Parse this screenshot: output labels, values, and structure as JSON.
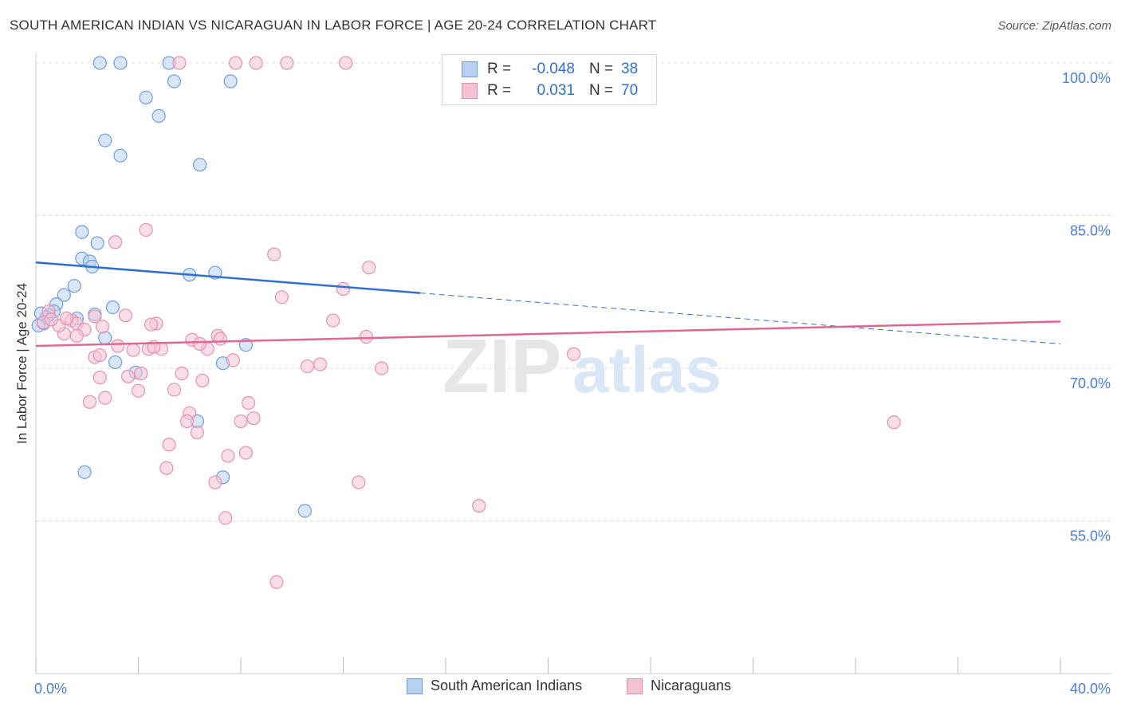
{
  "header": {
    "title": "SOUTH AMERICAN INDIAN VS NICARAGUAN IN LABOR FORCE | AGE 20-24 CORRELATION CHART",
    "source": "Source: ZipAtlas.com"
  },
  "colors": {
    "blue_fill": "#b8d1f3",
    "blue_stroke": "#6d9de0",
    "blue_line": "#2f6fcf",
    "pink_fill": "#f6c2d3",
    "pink_stroke": "#e890ae",
    "pink_line": "#e06890",
    "tick_label": "#4a7fd4",
    "grid": "#dddddd"
  },
  "watermark": {
    "part1": "ZIP",
    "part2": "atlas"
  },
  "chart_data": {
    "type": "scatter",
    "ylabel": "In Labor Force | Age 20-24",
    "xlim": [
      0,
      40
    ],
    "ylim": [
      40,
      102
    ],
    "x_ticks": [
      0,
      4,
      8,
      12,
      16,
      20,
      24,
      28,
      32,
      36,
      40
    ],
    "x_tick_labels": [
      {
        "value": 0,
        "label": "0.0%"
      },
      {
        "value": 40,
        "label": "40.0%"
      }
    ],
    "y_ticks": [
      {
        "value": 100,
        "label": "100.0%"
      },
      {
        "value": 85,
        "label": "85.0%"
      },
      {
        "value": 70,
        "label": "70.0%"
      },
      {
        "value": 55,
        "label": "55.0%"
      }
    ],
    "grid": true,
    "legend": {
      "position": "top-center",
      "rows": [
        {
          "r_label": "R =",
          "r_value": "-0.048",
          "n_label": "N =",
          "n_value": "38"
        },
        {
          "r_label": "R =",
          "r_value": "0.031",
          "n_label": "N =",
          "n_value": "70"
        }
      ]
    },
    "series": [
      {
        "name": "South American Indians",
        "color": "#6d9de0",
        "trend": {
          "x0": 0,
          "y0": 80.4,
          "x1": 15,
          "y1": 77.4,
          "dash_to_x": 40,
          "dash_to_y": 72.4
        },
        "points": [
          [
            2.5,
            100.0
          ],
          [
            3.3,
            100.0
          ],
          [
            5.2,
            100.0
          ],
          [
            5.4,
            98.2
          ],
          [
            7.6,
            98.2
          ],
          [
            4.3,
            96.6
          ],
          [
            4.8,
            94.8
          ],
          [
            2.7,
            92.4
          ],
          [
            3.3,
            90.9
          ],
          [
            6.4,
            90.0
          ],
          [
            1.8,
            83.4
          ],
          [
            2.4,
            82.3
          ],
          [
            1.8,
            80.8
          ],
          [
            2.1,
            80.5
          ],
          [
            2.2,
            80.0
          ],
          [
            6.0,
            79.2
          ],
          [
            7.0,
            79.4
          ],
          [
            1.5,
            78.1
          ],
          [
            1.1,
            77.2
          ],
          [
            0.8,
            76.3
          ],
          [
            0.7,
            75.6
          ],
          [
            0.5,
            75.2
          ],
          [
            0.4,
            75.0
          ],
          [
            3.0,
            76.0
          ],
          [
            2.3,
            75.3
          ],
          [
            1.6,
            74.9
          ],
          [
            0.3,
            74.4
          ],
          [
            2.7,
            73.0
          ],
          [
            8.2,
            72.3
          ],
          [
            3.1,
            70.6
          ],
          [
            3.9,
            69.6
          ],
          [
            7.3,
            70.5
          ],
          [
            6.3,
            64.8
          ],
          [
            1.9,
            59.8
          ],
          [
            7.3,
            59.3
          ],
          [
            10.5,
            56.0
          ],
          [
            0.1,
            74.2
          ],
          [
            0.2,
            75.4
          ]
        ]
      },
      {
        "name": "Nicaraguans",
        "color": "#e890ae",
        "trend": {
          "x0": 0,
          "y0": 72.2,
          "x1": 40,
          "y1": 74.6
        },
        "points": [
          [
            5.6,
            100.0
          ],
          [
            7.8,
            100.0
          ],
          [
            8.6,
            100.0
          ],
          [
            9.8,
            100.0
          ],
          [
            12.1,
            100.0
          ],
          [
            4.3,
            83.6
          ],
          [
            3.1,
            82.4
          ],
          [
            9.3,
            81.2
          ],
          [
            13.0,
            79.9
          ],
          [
            12.0,
            77.8
          ],
          [
            9.6,
            77.0
          ],
          [
            11.6,
            74.7
          ],
          [
            3.5,
            75.2
          ],
          [
            2.3,
            75.1
          ],
          [
            1.4,
            74.7
          ],
          [
            1.6,
            74.4
          ],
          [
            4.7,
            74.4
          ],
          [
            4.5,
            74.3
          ],
          [
            1.9,
            73.8
          ],
          [
            1.1,
            73.4
          ],
          [
            1.6,
            73.2
          ],
          [
            7.1,
            73.2
          ],
          [
            7.2,
            72.9
          ],
          [
            12.9,
            73.1
          ],
          [
            6.1,
            72.8
          ],
          [
            3.2,
            72.2
          ],
          [
            3.8,
            71.8
          ],
          [
            4.4,
            71.9
          ],
          [
            4.9,
            71.9
          ],
          [
            6.7,
            71.9
          ],
          [
            2.3,
            71.1
          ],
          [
            2.5,
            71.3
          ],
          [
            7.7,
            70.8
          ],
          [
            21.0,
            71.4
          ],
          [
            10.6,
            70.2
          ],
          [
            11.1,
            70.4
          ],
          [
            13.5,
            70.0
          ],
          [
            4.1,
            69.5
          ],
          [
            3.6,
            69.2
          ],
          [
            2.5,
            69.1
          ],
          [
            5.7,
            69.5
          ],
          [
            6.5,
            68.8
          ],
          [
            4.0,
            67.8
          ],
          [
            5.4,
            67.9
          ],
          [
            2.7,
            67.1
          ],
          [
            2.1,
            66.7
          ],
          [
            8.3,
            66.6
          ],
          [
            6.0,
            65.6
          ],
          [
            8.5,
            65.1
          ],
          [
            5.9,
            64.8
          ],
          [
            8.0,
            64.8
          ],
          [
            33.5,
            64.7
          ],
          [
            6.3,
            63.7
          ],
          [
            5.2,
            62.5
          ],
          [
            8.2,
            61.7
          ],
          [
            7.5,
            61.4
          ],
          [
            5.1,
            60.2
          ],
          [
            7.0,
            58.8
          ],
          [
            12.6,
            58.8
          ],
          [
            17.3,
            56.5
          ],
          [
            7.4,
            55.3
          ],
          [
            9.4,
            49.0
          ],
          [
            0.3,
            74.5
          ],
          [
            0.5,
            75.6
          ],
          [
            0.9,
            74.2
          ],
          [
            1.2,
            74.9
          ],
          [
            2.6,
            74.1
          ],
          [
            6.4,
            72.4
          ],
          [
            4.6,
            72.1
          ],
          [
            0.6,
            74.8
          ]
        ]
      }
    ]
  }
}
